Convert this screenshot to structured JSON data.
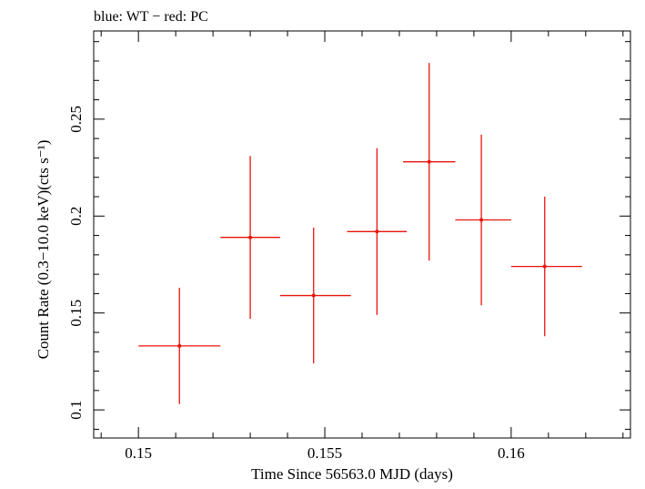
{
  "chart_data": {
    "type": "scatter",
    "title": "blue: WT − red: PC",
    "xlabel": "Time Since 56563.0 MJD (days)",
    "ylabel": "Count Rate (0.3−10.0 keV)(cts s⁻¹)",
    "xlim": [
      0.1488,
      0.1632
    ],
    "ylim": [
      0.0855,
      0.2955
    ],
    "x_ticks": [
      0.15,
      0.155,
      0.16
    ],
    "x_tick_labels": [
      "0.15",
      "0.155",
      "0.16"
    ],
    "y_ticks": [
      0.1,
      0.15,
      0.2,
      0.25
    ],
    "y_tick_labels": [
      "0.1",
      "0.15",
      "0.2",
      "0.25"
    ],
    "grid": false,
    "series": [
      {
        "color": "#e8140a",
        "points": [
          {
            "x": 0.1511,
            "y": 0.133,
            "xerr_lo": 0.0011,
            "xerr_hi": 0.0011,
            "yerr_lo": 0.03,
            "yerr_hi": 0.03
          },
          {
            "x": 0.153,
            "y": 0.189,
            "xerr_lo": 0.0008,
            "xerr_hi": 0.0008,
            "yerr_lo": 0.042,
            "yerr_hi": 0.042
          },
          {
            "x": 0.1547,
            "y": 0.159,
            "xerr_lo": 0.0009,
            "xerr_hi": 0.001,
            "yerr_lo": 0.035,
            "yerr_hi": 0.035
          },
          {
            "x": 0.1564,
            "y": 0.192,
            "xerr_lo": 0.0008,
            "xerr_hi": 0.0008,
            "yerr_lo": 0.043,
            "yerr_hi": 0.043
          },
          {
            "x": 0.1578,
            "y": 0.228,
            "xerr_lo": 0.0007,
            "xerr_hi": 0.0007,
            "yerr_lo": 0.051,
            "yerr_hi": 0.051
          },
          {
            "x": 0.1592,
            "y": 0.198,
            "xerr_lo": 0.0007,
            "xerr_hi": 0.0008,
            "yerr_lo": 0.044,
            "yerr_hi": 0.044
          },
          {
            "x": 0.1609,
            "y": 0.174,
            "xerr_lo": 0.0009,
            "xerr_hi": 0.001,
            "yerr_lo": 0.036,
            "yerr_hi": 0.036
          }
        ]
      }
    ]
  }
}
